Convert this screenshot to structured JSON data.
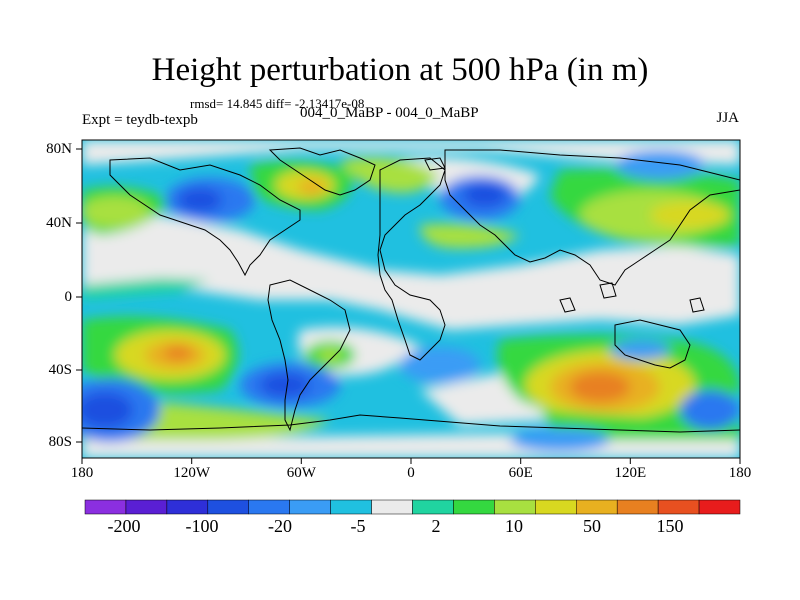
{
  "title": "Height perturbation at 500 hPa (in m)",
  "stats": "rmsd= 14.845 diff= -2.13417e-08",
  "left_string": "Expt = teydb-texpb",
  "center_string": "004_0_MaBP - 004_0_MaBP",
  "right_string": "JJA",
  "y_ticks": [
    "80N",
    "40N",
    "0",
    "40S",
    "80S"
  ],
  "x_ticks": [
    "180",
    "120W",
    "60W",
    "0",
    "60E",
    "120E",
    "180"
  ],
  "colorbar": {
    "colors": [
      "#8b2fe0",
      "#5a1fd4",
      "#2e2fd8",
      "#1e50e0",
      "#2a78f0",
      "#3a9cf5",
      "#20c0e0",
      "#ebebeb",
      "#20d4a0",
      "#34d840",
      "#a8e040",
      "#d8d820",
      "#e8b020",
      "#e88020",
      "#e85020",
      "#e81c1c"
    ],
    "labels": [
      "-200",
      "-100",
      "-20",
      "-5",
      "2",
      "10",
      "50",
      "150"
    ]
  }
}
